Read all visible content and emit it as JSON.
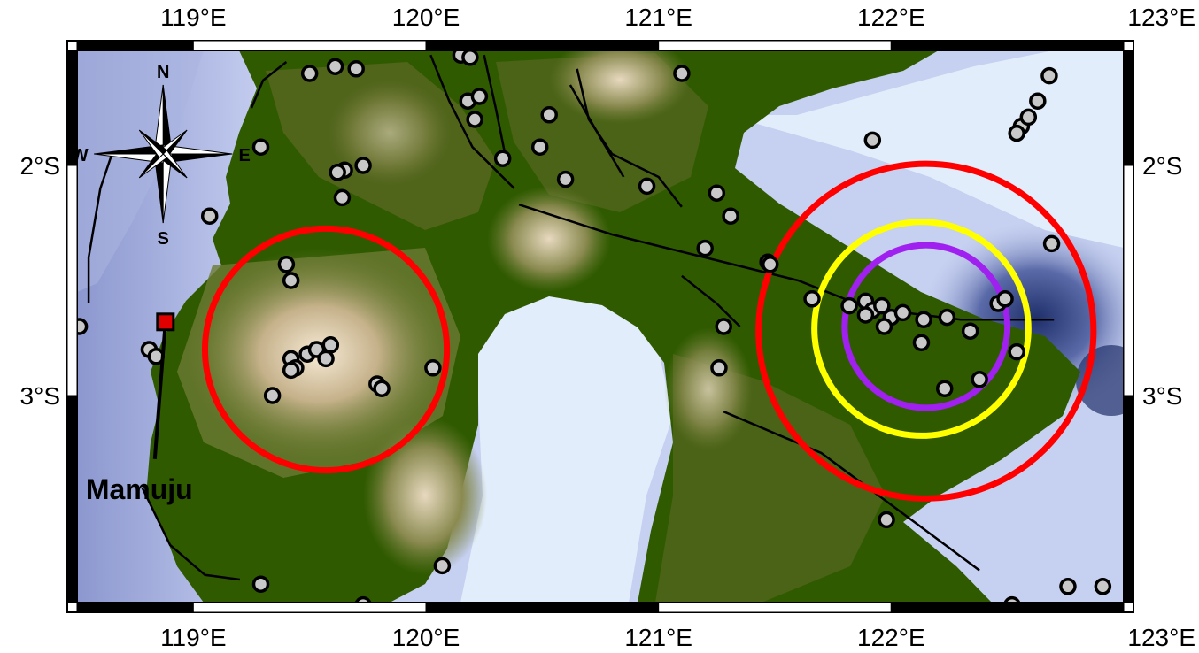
{
  "map": {
    "lon_min": 118.5,
    "lon_max": 123.0,
    "lat_min": -3.9,
    "lat_max": -1.5,
    "colors": {
      "sea_deep": "#2f3f7a",
      "sea_mid": "#8c97cf",
      "sea_light": "#b8c2e8",
      "shelf": "#e2edfb",
      "lowland": "#2f5a00",
      "hill": "#6d7a33",
      "highland": "#c8b58c",
      "peak": "#f3e7d2",
      "frame": "#000000"
    },
    "x_ticks": [
      {
        "value": 119,
        "label": "119°E"
      },
      {
        "value": 120,
        "label": "120°E"
      },
      {
        "value": 121,
        "label": "121°E"
      },
      {
        "value": 122,
        "label": "122°E"
      },
      {
        "value": 123,
        "label": "123°E"
      }
    ],
    "y_ticks": [
      {
        "value": -2,
        "label": "2°S"
      },
      {
        "value": -3,
        "label": "3°S"
      }
    ],
    "city": {
      "name": "Mamuju",
      "lon": 118.88,
      "lat": -2.68
    },
    "compass": {
      "n": "N",
      "s": "S",
      "e": "E",
      "w": "W",
      "lon": 118.87,
      "lat": -1.95
    },
    "rings": [
      {
        "name": "red-ring-west",
        "color": "#ff0000",
        "lon": 119.57,
        "lat": -2.8,
        "r_deg": 0.52
      },
      {
        "name": "red-ring-east",
        "color": "#ff0000",
        "lon": 122.15,
        "lat": -2.72,
        "r_deg": 0.72
      },
      {
        "name": "yellow-ring",
        "color": "#ffff00",
        "lon": 122.13,
        "lat": -2.71,
        "r_deg": 0.46
      },
      {
        "name": "purple-ring",
        "color": "#a020f0",
        "lon": 122.15,
        "lat": -2.7,
        "r_deg": 0.35
      }
    ],
    "events": [
      [
        119.5,
        -1.6
      ],
      [
        119.61,
        -1.57
      ],
      [
        119.7,
        -1.58
      ],
      [
        120.15,
        -1.52
      ],
      [
        120.19,
        -1.53
      ],
      [
        120.18,
        -1.72
      ],
      [
        120.23,
        -1.7
      ],
      [
        120.21,
        -1.8
      ],
      [
        120.33,
        -1.97
      ],
      [
        120.49,
        -1.92
      ],
      [
        120.53,
        -1.78
      ],
      [
        120.6,
        -2.06
      ],
      [
        120.95,
        -2.09
      ],
      [
        121.1,
        -1.6
      ],
      [
        121.25,
        -2.12
      ],
      [
        121.31,
        -2.22
      ],
      [
        121.2,
        -2.36
      ],
      [
        121.47,
        -2.42
      ],
      [
        121.92,
        -1.89
      ],
      [
        119.65,
        -2.02
      ],
      [
        119.62,
        -2.03
      ],
      [
        119.73,
        -2.0
      ],
      [
        119.64,
        -2.14
      ],
      [
        119.29,
        -1.92
      ],
      [
        119.07,
        -2.22
      ],
      [
        119.4,
        -2.43
      ],
      [
        119.42,
        -2.5
      ],
      [
        118.81,
        -2.8
      ],
      [
        118.84,
        -2.83
      ],
      [
        119.42,
        -2.84
      ],
      [
        119.44,
        -2.88
      ],
      [
        119.49,
        -2.82
      ],
      [
        119.53,
        -2.8
      ],
      [
        119.57,
        -2.84
      ],
      [
        119.59,
        -2.78
      ],
      [
        119.42,
        -2.89
      ],
      [
        119.34,
        -3.0
      ],
      [
        119.79,
        -2.95
      ],
      [
        119.81,
        -2.97
      ],
      [
        120.03,
        -2.88
      ],
      [
        118.51,
        -2.7
      ],
      [
        121.28,
        -2.7
      ],
      [
        121.26,
        -2.88
      ],
      [
        121.66,
        -2.58
      ],
      [
        121.82,
        -2.61
      ],
      [
        121.89,
        -2.59
      ],
      [
        121.92,
        -2.63
      ],
      [
        121.96,
        -2.61
      ],
      [
        122.0,
        -2.66
      ],
      [
        122.05,
        -2.64
      ],
      [
        121.89,
        -2.65
      ],
      [
        121.97,
        -2.7
      ],
      [
        122.14,
        -2.67
      ],
      [
        122.24,
        -2.66
      ],
      [
        122.34,
        -2.72
      ],
      [
        122.13,
        -2.77
      ],
      [
        122.46,
        -2.6
      ],
      [
        122.49,
        -2.58
      ],
      [
        122.54,
        -2.81
      ],
      [
        122.38,
        -2.93
      ],
      [
        122.23,
        -2.97
      ],
      [
        122.69,
        -2.34
      ],
      [
        122.56,
        -1.83
      ],
      [
        122.59,
        -1.79
      ],
      [
        122.63,
        -1.72
      ],
      [
        122.68,
        -1.61
      ],
      [
        122.54,
        -1.86
      ],
      [
        121.98,
        -3.54
      ],
      [
        122.52,
        -3.91
      ],
      [
        122.76,
        -3.83
      ],
      [
        122.91,
        -3.83
      ],
      [
        119.29,
        -3.82
      ],
      [
        119.73,
        -3.91
      ],
      [
        120.07,
        -3.74
      ],
      [
        121.48,
        -2.43
      ]
    ],
    "faults": [
      [
        [
          119.4,
          -1.55
        ],
        [
          119.3,
          -1.63
        ],
        [
          119.25,
          -1.75
        ]
      ],
      [
        [
          120.02,
          -1.52
        ],
        [
          120.1,
          -1.72
        ],
        [
          120.2,
          -1.92
        ],
        [
          120.38,
          -2.1
        ]
      ],
      [
        [
          120.25,
          -1.52
        ],
        [
          120.3,
          -1.75
        ],
        [
          120.35,
          -2.0
        ]
      ],
      [
        [
          120.65,
          -1.58
        ],
        [
          120.7,
          -1.8
        ],
        [
          120.8,
          -1.95
        ],
        [
          121.0,
          -2.05
        ],
        [
          121.1,
          -2.18
        ]
      ],
      [
        [
          120.62,
          -1.65
        ],
        [
          120.75,
          -1.88
        ],
        [
          120.85,
          -2.05
        ]
      ],
      [
        [
          120.4,
          -2.17
        ],
        [
          120.8,
          -2.3
        ],
        [
          121.2,
          -2.4
        ],
        [
          121.6,
          -2.5
        ],
        [
          121.9,
          -2.62
        ],
        [
          122.3,
          -2.67
        ],
        [
          122.7,
          -2.67
        ]
      ],
      [
        [
          121.1,
          -2.48
        ],
        [
          121.25,
          -2.6
        ],
        [
          121.35,
          -2.7
        ]
      ],
      [
        [
          121.28,
          -3.07
        ],
        [
          121.7,
          -3.25
        ],
        [
          122.1,
          -3.55
        ],
        [
          122.38,
          -3.76
        ]
      ],
      [
        [
          118.65,
          -1.95
        ],
        [
          118.6,
          -2.1
        ],
        [
          118.55,
          -2.4
        ],
        [
          118.55,
          -2.6
        ]
      ],
      [
        [
          118.78,
          -3.4
        ],
        [
          118.9,
          -3.65
        ],
        [
          119.05,
          -3.78
        ],
        [
          119.2,
          -3.8
        ]
      ]
    ]
  }
}
